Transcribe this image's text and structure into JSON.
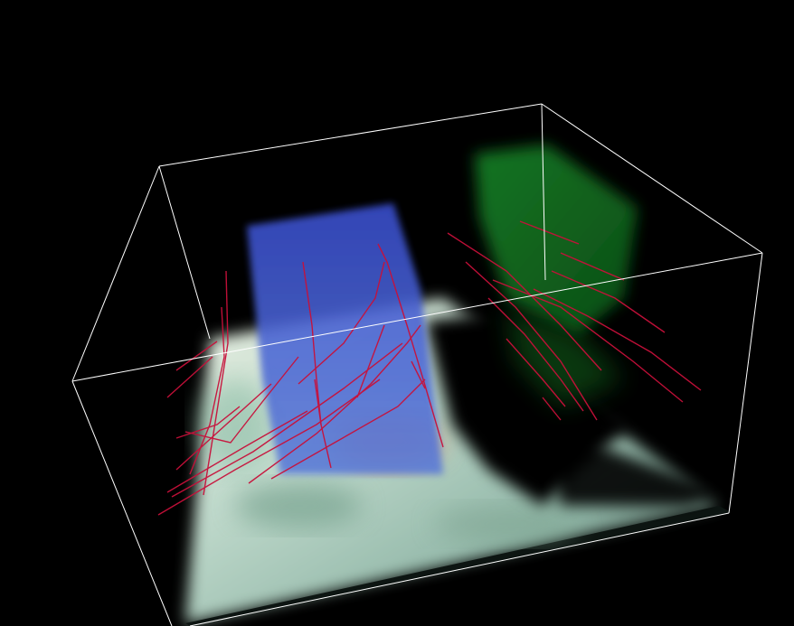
{
  "scene": {
    "background_color": "#000000",
    "bounding_box_color": "#ffffff",
    "streamline_color": "#c8103a",
    "volumes": [
      {
        "name": "blue-volume",
        "color": "#3a4fc8"
      },
      {
        "name": "green-volume",
        "color": "#1f8a2e"
      },
      {
        "name": "terrain-floor",
        "color": "#cfe3d6"
      }
    ]
  }
}
